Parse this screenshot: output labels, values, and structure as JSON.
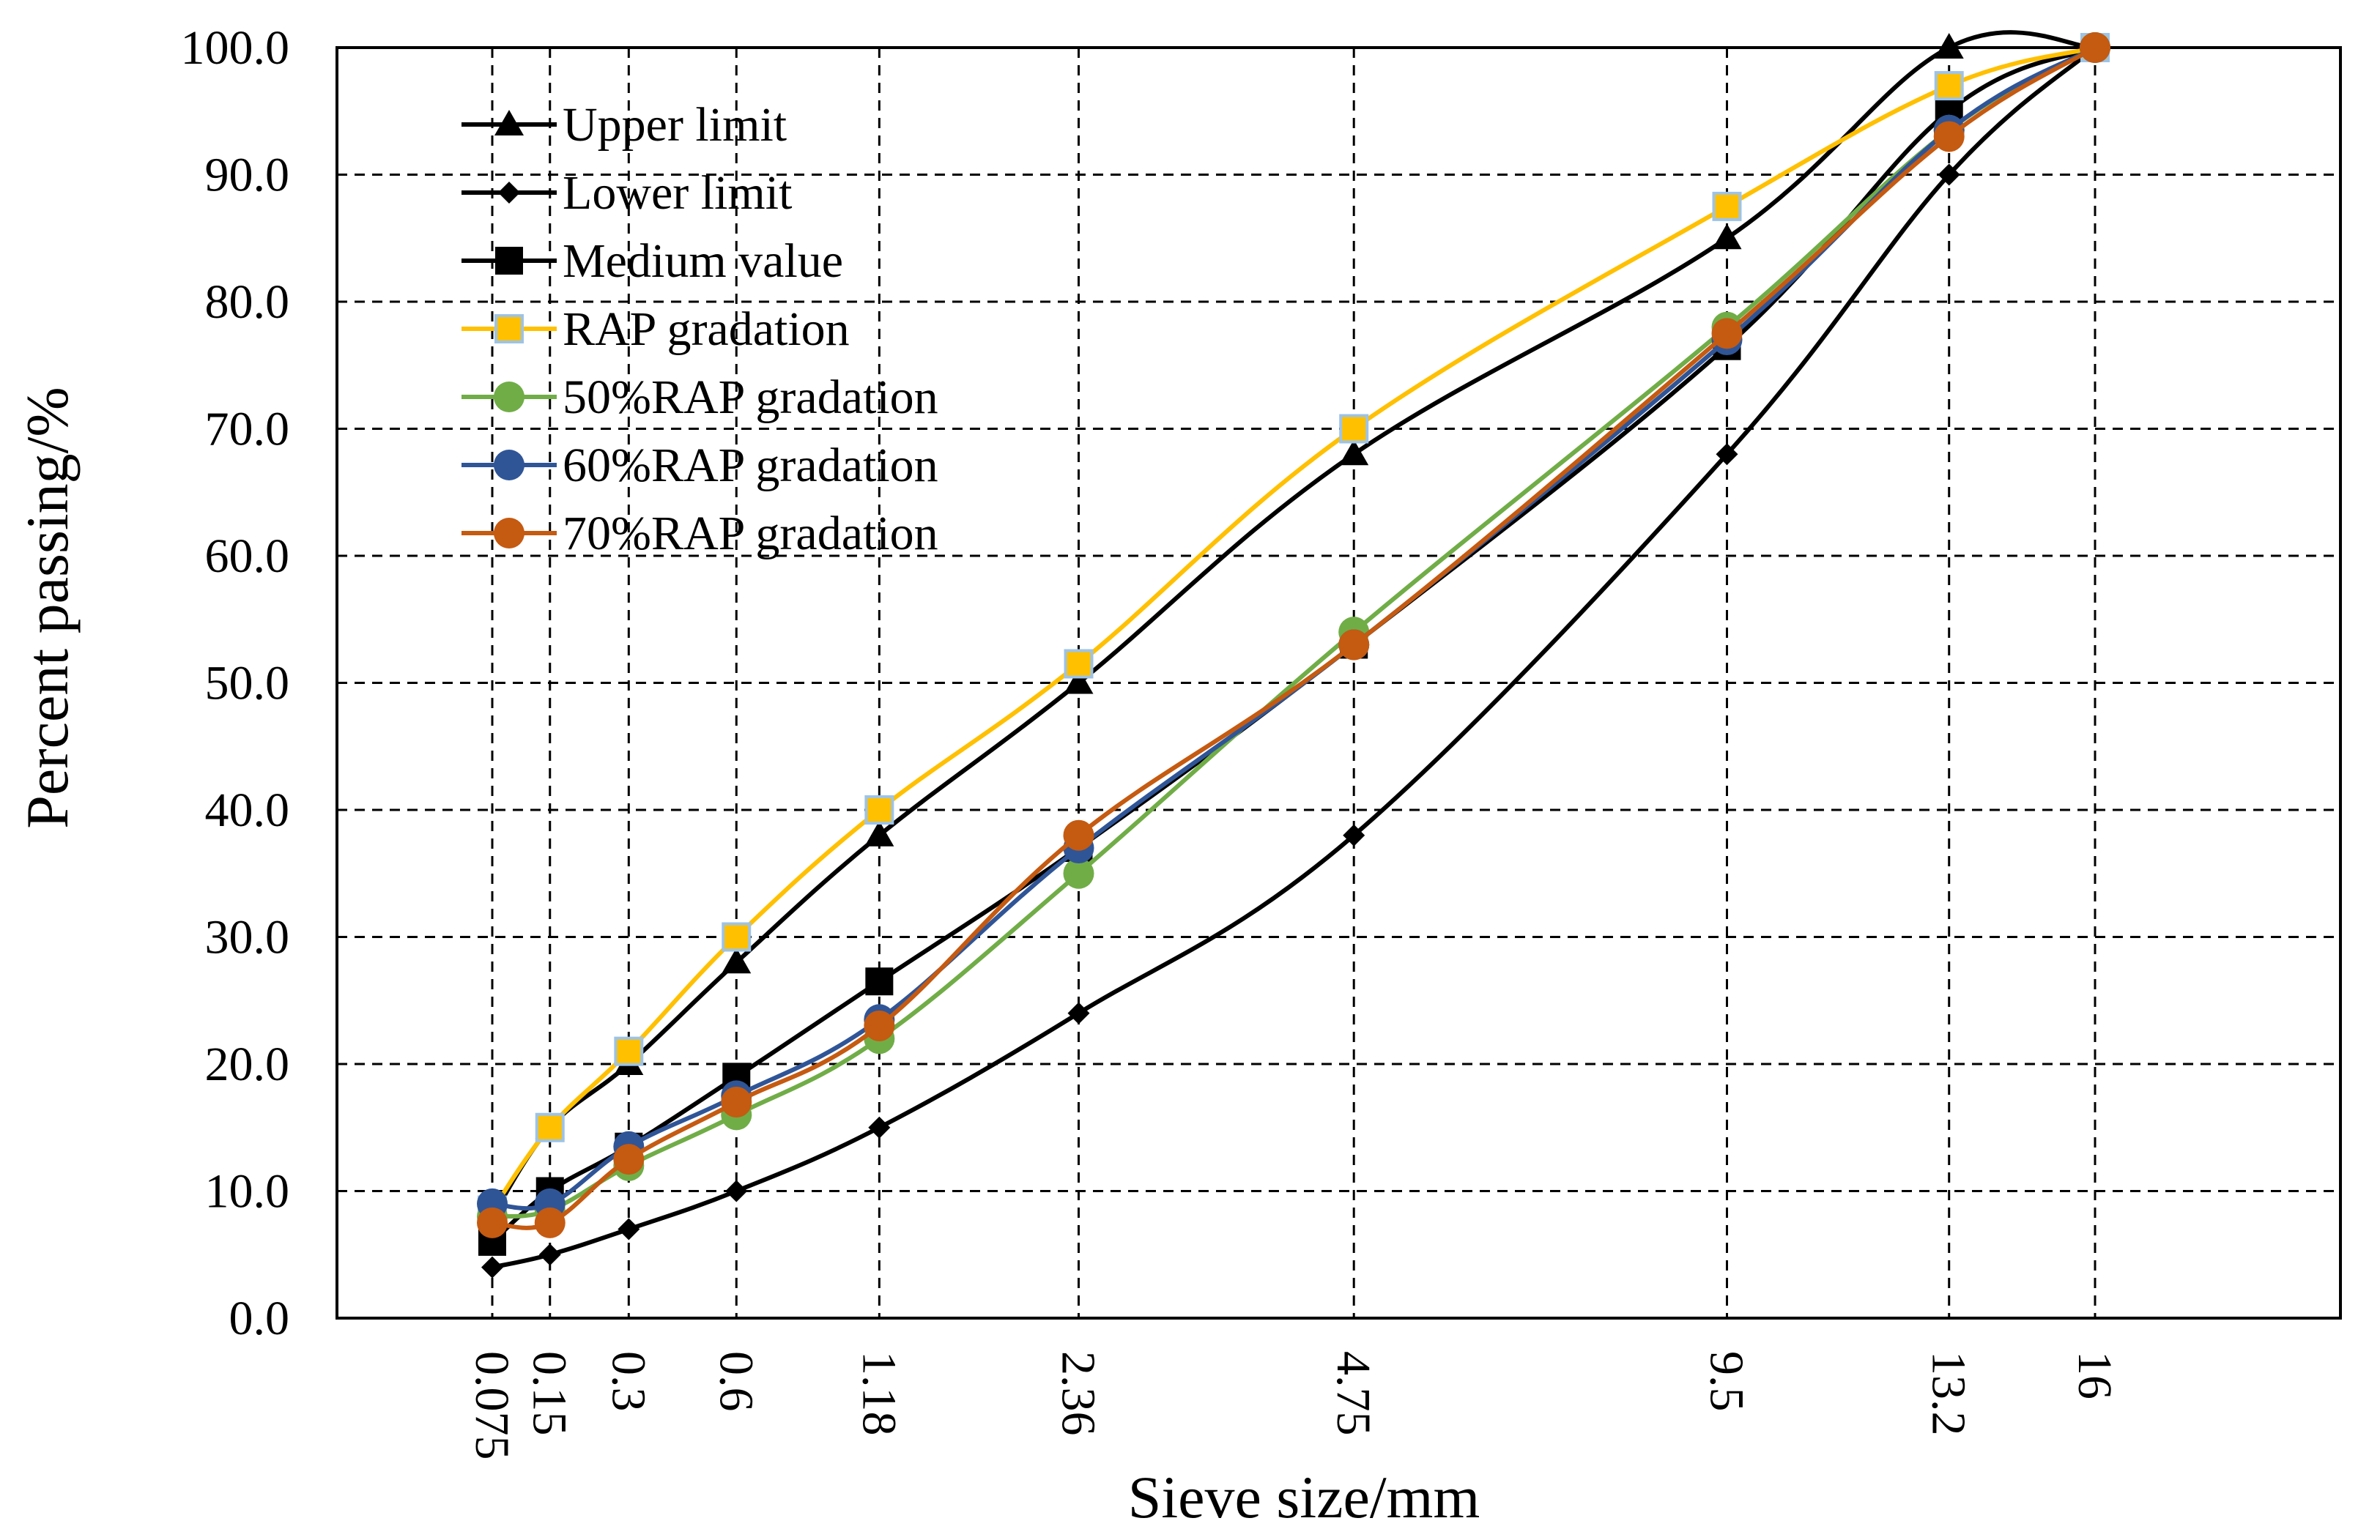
{
  "chart_data": {
    "type": "line",
    "title": "",
    "xlabel": "Sieve size/mm",
    "ylabel": "Percent passing/%",
    "ylim": [
      0,
      100
    ],
    "y_ticks": [
      "0.0",
      "10.0",
      "20.0",
      "30.0",
      "40.0",
      "50.0",
      "60.0",
      "70.0",
      "80.0",
      "90.0",
      "100.0"
    ],
    "categories": [
      "0.075",
      "0.15",
      "0.3",
      "0.6",
      "1.18",
      "2.36",
      "4.75",
      "9.5",
      "13.2",
      "16"
    ],
    "x_scale": "gradation power 0.45",
    "grid": true,
    "legend_position": "top-left",
    "series": [
      {
        "name": "Upper limit",
        "color": "#000000",
        "marker": "triangle",
        "values": [
          8,
          15,
          20,
          28,
          38,
          50,
          68,
          85,
          100,
          100
        ]
      },
      {
        "name": "Lower limit",
        "color": "#000000",
        "marker": "diamond",
        "values": [
          4,
          5,
          7,
          10,
          15,
          24,
          38,
          68,
          90,
          100
        ]
      },
      {
        "name": "Medium value",
        "color": "#000000",
        "marker": "square",
        "values": [
          6,
          10,
          13.5,
          19,
          26.5,
          37,
          53,
          76.5,
          95,
          100
        ]
      },
      {
        "name": "RAP gradation",
        "color": "#FFC000",
        "marker": "square-hollow",
        "values": [
          8.5,
          15,
          21,
          30,
          40,
          51.5,
          70,
          87.5,
          97,
          100
        ]
      },
      {
        "name": "50%RAP gradation",
        "color": "#70AD47",
        "marker": "circle",
        "values": [
          8,
          8.5,
          12,
          16,
          22,
          35,
          54,
          78,
          93.5,
          100
        ]
      },
      {
        "name": "60%RAP gradation",
        "color": "#2F5597",
        "marker": "circle",
        "values": [
          9,
          9,
          13.5,
          17.5,
          23.5,
          37,
          53,
          77,
          93.5,
          100
        ]
      },
      {
        "name": "70%RAP gradation",
        "color": "#C55A11",
        "marker": "circle",
        "values": [
          7.5,
          7.5,
          12.5,
          17,
          23,
          38,
          53,
          77.5,
          93,
          100
        ]
      }
    ]
  }
}
